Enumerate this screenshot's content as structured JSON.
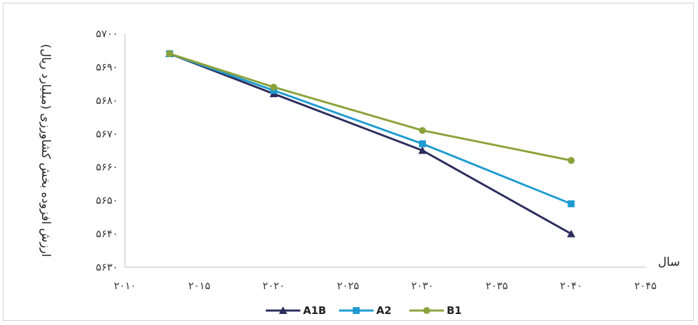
{
  "chart_data": {
    "type": "line",
    "title": "",
    "xlabel": "سال",
    "ylabel": "ارزش افزوده بخش کشاورزی (میلیارد ریال)",
    "xlim": [
      2010,
      2045
    ],
    "ylim": [
      5630,
      5700
    ],
    "x_ticks": [
      "۲۰۱۰",
      "۲۰۱۵",
      "۲۰۲۰",
      "۲۰۲۵",
      "۲۰۳۰",
      "۲۰۳۵",
      "۲۰۴۰",
      "۲۰۴۵"
    ],
    "y_ticks": [
      "۵۶۳۰",
      "۵۶۴۰",
      "۵۶۵۰",
      "۵۶۶۰",
      "۵۶۷۰",
      "۵۶۸۰",
      "۵۶۹۰",
      "۵۷۰۰"
    ],
    "x": [
      2013,
      2020,
      2030,
      2040
    ],
    "grid": false,
    "legend_position": "bottom",
    "series": [
      {
        "name": "A1B",
        "values": [
          5694,
          5682,
          5665,
          5640
        ],
        "color": "#2b2d5c",
        "marker": "triangle"
      },
      {
        "name": "A2",
        "values": [
          5694,
          5683,
          5667,
          5649
        ],
        "color": "#1f9bd1",
        "marker": "square"
      },
      {
        "name": "B1",
        "values": [
          5694,
          5684,
          5671,
          5662
        ],
        "color": "#8aa23a",
        "marker": "circle"
      }
    ]
  }
}
